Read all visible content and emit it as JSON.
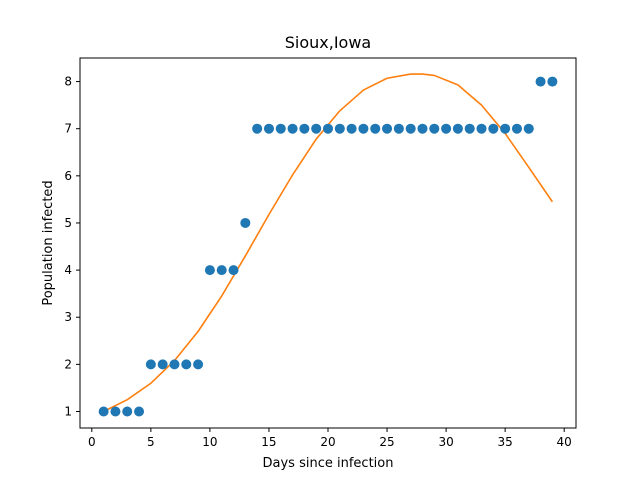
{
  "chart_data": {
    "type": "scatter",
    "title": "Sioux,Iowa",
    "xlabel": "Days since infection",
    "ylabel": "Population infected",
    "xlim": [
      -1,
      41
    ],
    "ylim": [
      0.65,
      8.5
    ],
    "xticks": [
      0,
      5,
      10,
      15,
      20,
      25,
      30,
      35,
      40
    ],
    "yticks": [
      1,
      2,
      3,
      4,
      5,
      6,
      7,
      8
    ],
    "grid": false,
    "series": [
      {
        "kind": "scatter",
        "color": "#1f77b4",
        "x": [
          1,
          2,
          3,
          4,
          5,
          6,
          7,
          8,
          9,
          10,
          11,
          12,
          13,
          14,
          15,
          16,
          17,
          18,
          19,
          20,
          21,
          22,
          23,
          24,
          25,
          26,
          27,
          28,
          29,
          30,
          31,
          32,
          33,
          34,
          35,
          36,
          37,
          38,
          39
        ],
        "y": [
          1,
          1,
          1,
          1,
          2,
          2,
          2,
          2,
          2,
          4,
          4,
          4,
          5,
          7,
          7,
          7,
          7,
          7,
          7,
          7,
          7,
          7,
          7,
          7,
          7,
          7,
          7,
          7,
          7,
          7,
          7,
          7,
          7,
          7,
          7,
          7,
          7,
          8,
          8
        ]
      },
      {
        "kind": "line",
        "color": "#ff7f0e",
        "x": [
          1,
          3,
          5,
          7,
          9,
          11,
          13,
          15,
          17,
          19,
          21,
          23,
          25,
          27,
          28,
          29,
          31,
          33,
          35,
          37,
          39
        ],
        "y": [
          1.0,
          1.25,
          1.6,
          2.08,
          2.7,
          3.45,
          4.3,
          5.18,
          6.02,
          6.78,
          7.38,
          7.82,
          8.07,
          8.16,
          8.16,
          8.13,
          7.93,
          7.5,
          6.9,
          6.18,
          5.45
        ]
      }
    ]
  }
}
